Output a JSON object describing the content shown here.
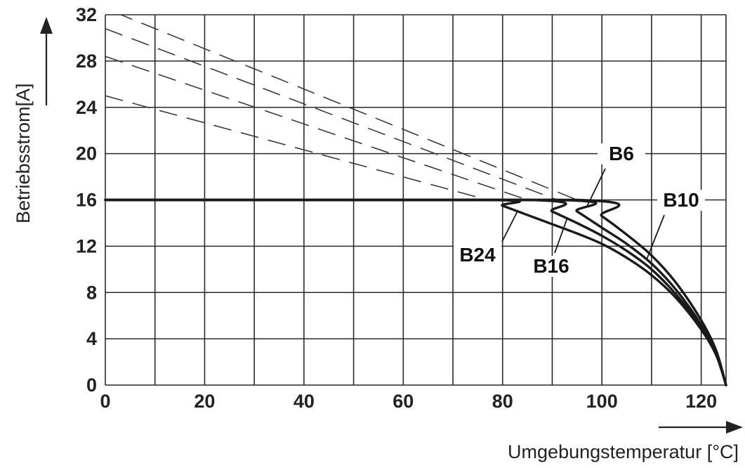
{
  "chart_data": {
    "type": "line",
    "xlabel": "Umgebungstemperatur [°C]",
    "ylabel": "Betriebsstrom[A]",
    "xlim": [
      0,
      125
    ],
    "ylim": [
      0,
      32
    ],
    "x_ticks": [
      0,
      20,
      40,
      60,
      80,
      100,
      120
    ],
    "x_tick_labels": [
      "0",
      "20",
      "40",
      "60",
      "80",
      "100",
      "120"
    ],
    "y_ticks": [
      0,
      4,
      8,
      12,
      16,
      20,
      24,
      28,
      32
    ],
    "y_tick_labels": [
      "0",
      "4",
      "8",
      "12",
      "16",
      "20",
      "24",
      "28",
      "32"
    ],
    "grid": true,
    "series": [
      {
        "name": "B6",
        "values_x": [
          0,
          95,
          100,
          105,
          110,
          115,
          120,
          123,
          125
        ],
        "values_y": [
          16,
          16,
          14.6,
          13.0,
          11.2,
          8.8,
          5.6,
          3.0,
          0
        ],
        "extrapolated_x": [
          2,
          95
        ],
        "extrapolated_y": [
          32.2,
          16
        ]
      },
      {
        "name": "B10",
        "values_x": [
          0,
          91,
          95,
          100,
          105,
          110,
          115,
          120,
          123,
          125
        ],
        "values_y": [
          16,
          16,
          15.0,
          13.6,
          12.2,
          10.5,
          8.2,
          5.2,
          2.8,
          0
        ],
        "extrapolated_x": [
          0,
          91
        ],
        "extrapolated_y": [
          30.8,
          16
        ]
      },
      {
        "name": "B16",
        "values_x": [
          0,
          85,
          90,
          95,
          100,
          105,
          110,
          115,
          120,
          123,
          125
        ],
        "values_y": [
          16,
          16,
          15.0,
          14.0,
          12.9,
          11.6,
          10.0,
          7.8,
          5.0,
          2.7,
          0
        ],
        "extrapolated_x": [
          0,
          85
        ],
        "extrapolated_y": [
          28.4,
          16
        ]
      },
      {
        "name": "B24",
        "values_x": [
          0,
          77,
          80,
          85,
          90,
          95,
          100,
          105,
          110,
          115,
          120,
          123,
          125
        ],
        "values_y": [
          16,
          16,
          15.5,
          14.7,
          13.9,
          13.1,
          12.2,
          11.0,
          9.5,
          7.5,
          4.8,
          2.6,
          0
        ],
        "extrapolated_x": [
          0,
          77
        ],
        "extrapolated_y": [
          25.0,
          16
        ]
      }
    ],
    "annotations": [
      {
        "text": "B6",
        "series": "B6"
      },
      {
        "text": "B10",
        "series": "B10"
      },
      {
        "text": "B16",
        "series": "B16"
      },
      {
        "text": "B24",
        "series": "B24"
      }
    ]
  }
}
